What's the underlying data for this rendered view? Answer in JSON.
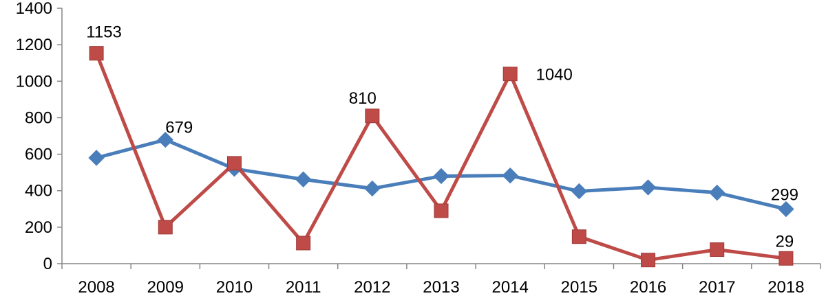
{
  "chart_data": {
    "type": "line",
    "categories": [
      "2008",
      "2009",
      "2010",
      "2011",
      "2012",
      "2013",
      "2014",
      "2015",
      "2016",
      "2017",
      "2018"
    ],
    "ylim": [
      0,
      1400
    ],
    "yticks": [
      0,
      200,
      400,
      600,
      800,
      1000,
      1200,
      1400
    ],
    "grid": false,
    "series": [
      {
        "color": "#4A7EBB",
        "marker": "diamond",
        "values": [
          580,
          679,
          520,
          462,
          412,
          480,
          483,
          397,
          418,
          389,
          299
        ],
        "data_labels": [
          {
            "index": 1,
            "text": "679"
          },
          {
            "index": 10,
            "text": "299"
          }
        ]
      },
      {
        "color": "#BE4B48",
        "marker": "square",
        "values": [
          1153,
          200,
          550,
          113,
          810,
          290,
          1040,
          148,
          20,
          77,
          29
        ],
        "data_labels": [
          {
            "index": 0,
            "text": "1153"
          },
          {
            "index": 4,
            "text": "810"
          },
          {
            "index": 6,
            "text": "1040"
          },
          {
            "index": 10,
            "text": "29"
          }
        ]
      }
    ]
  }
}
